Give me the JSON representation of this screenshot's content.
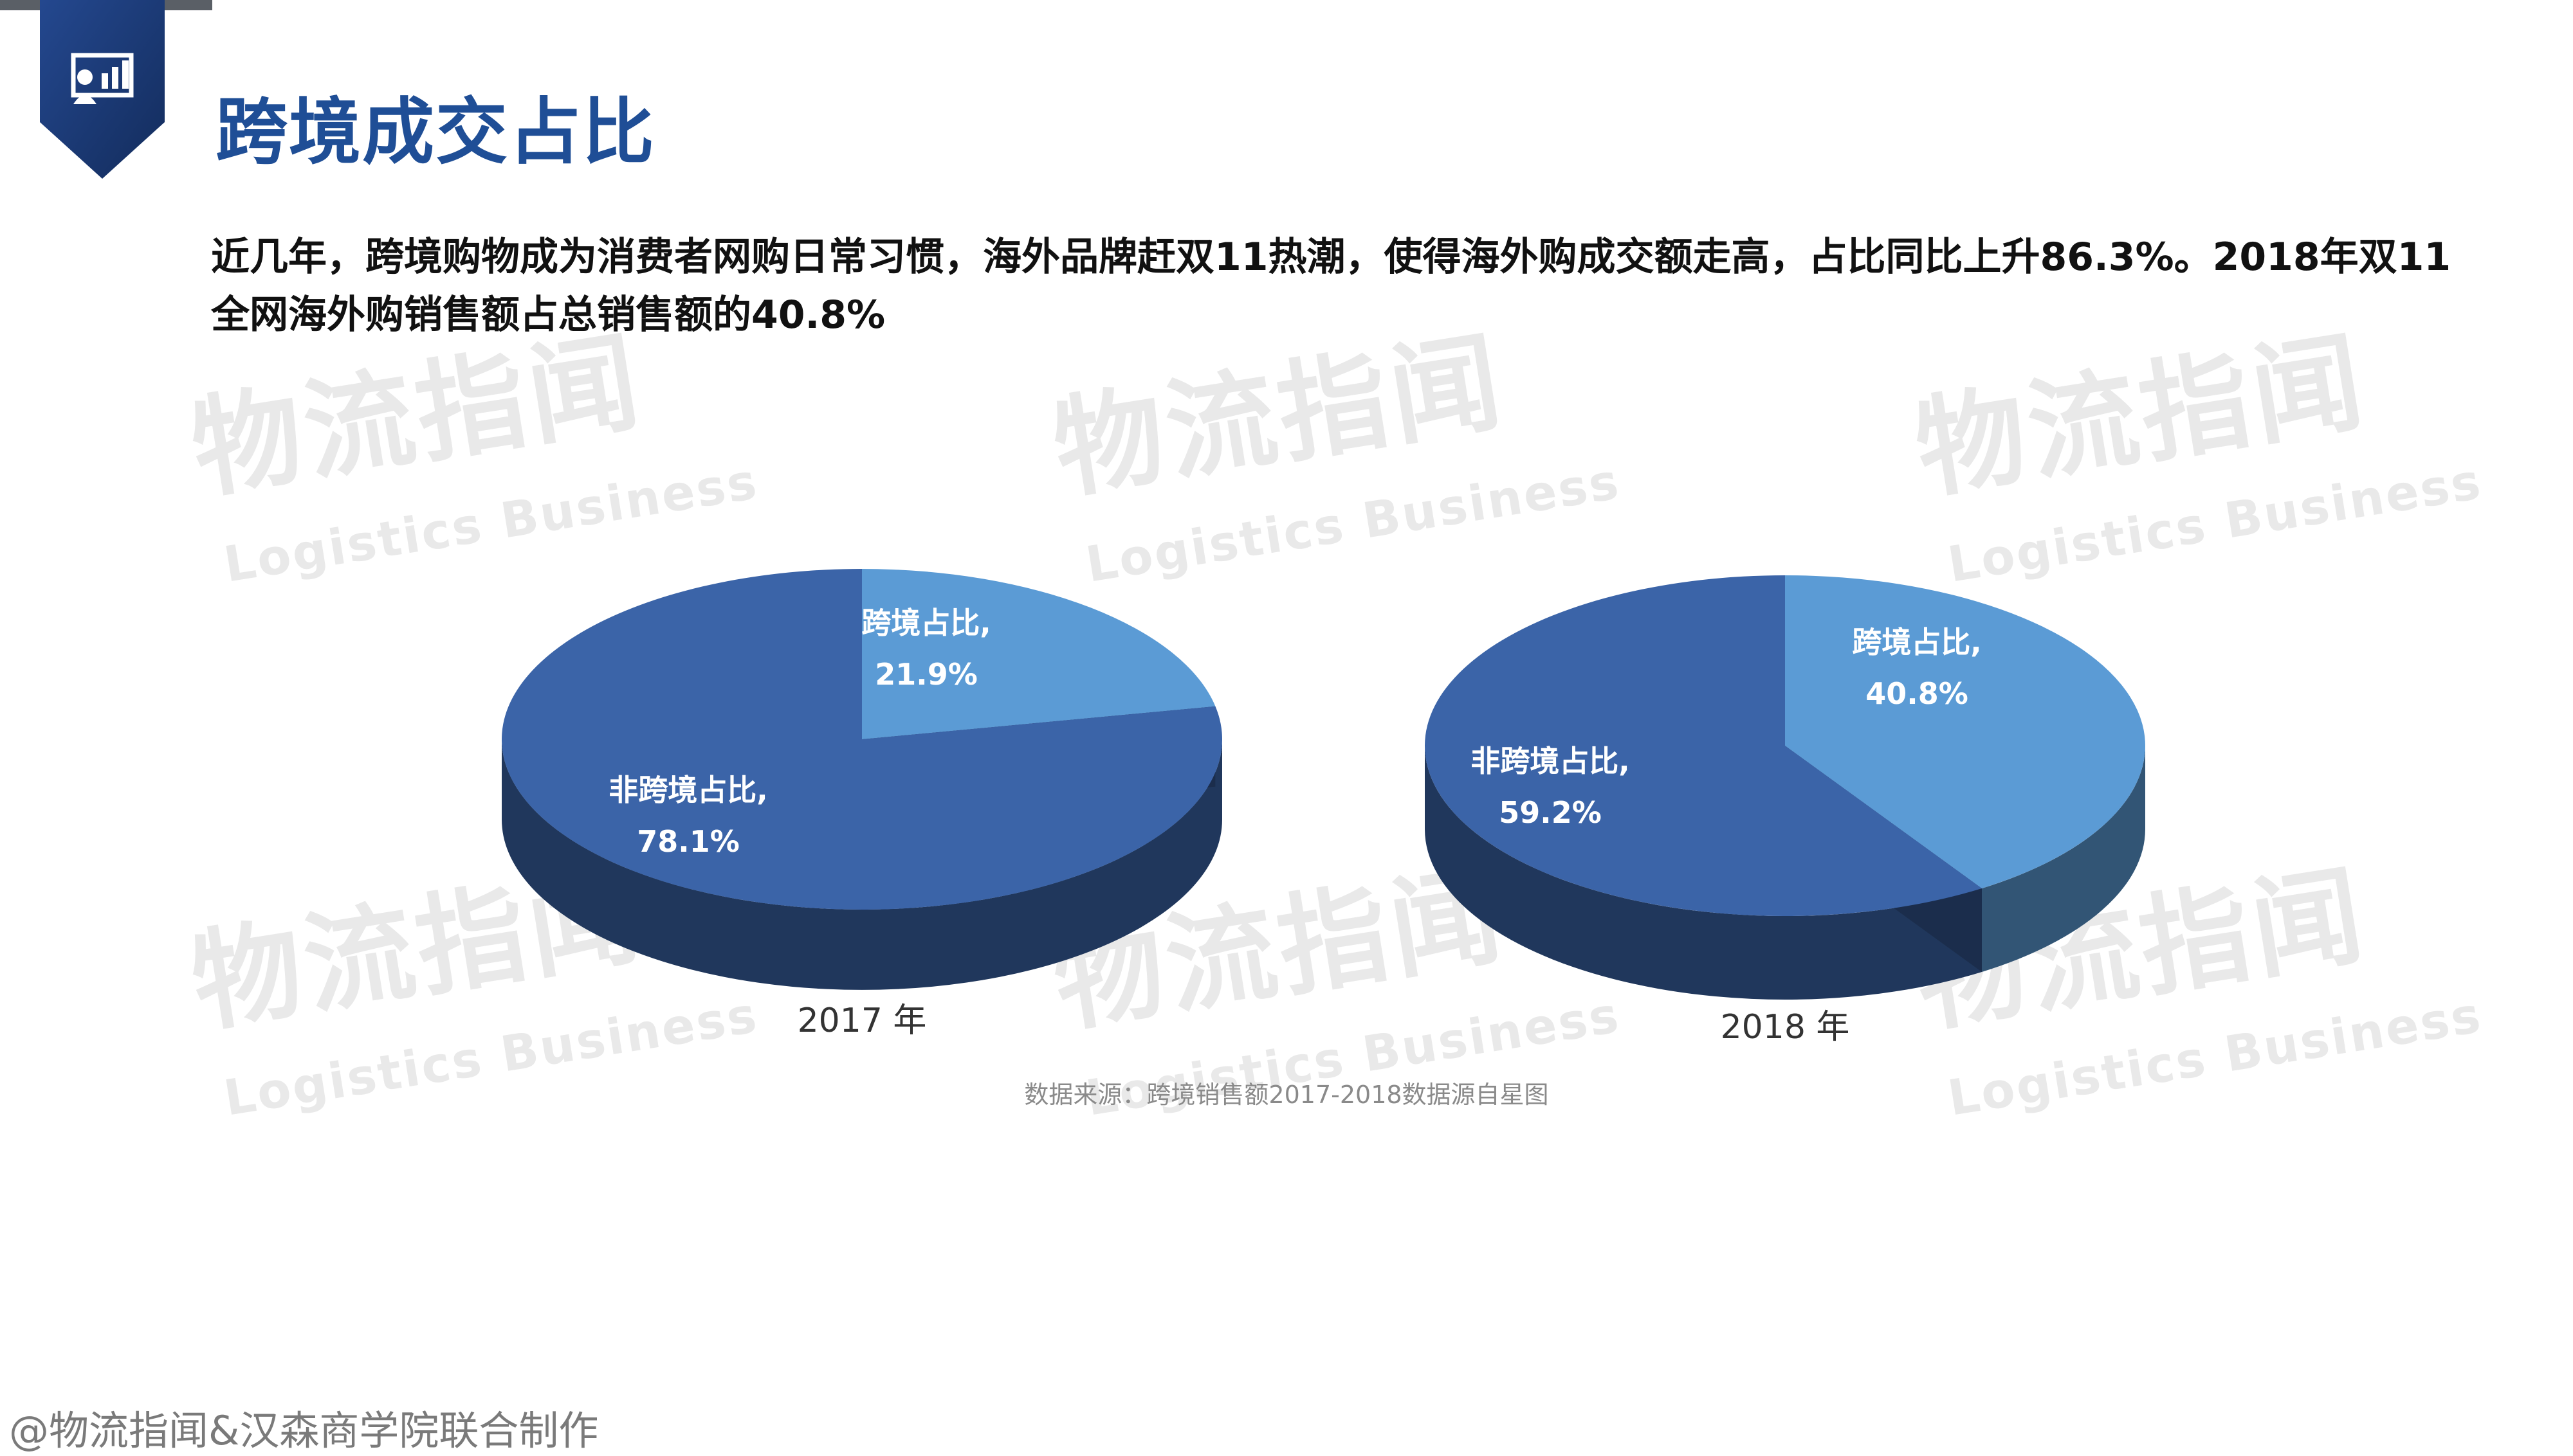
{
  "header": {
    "title": "跨境成交占比",
    "description": "近几年，跨境购物成为消费者网购日常习惯，海外品牌赶双11热潮，使得海外购成交额走高，占比同比上升86.3%。2018年双11全网海外购销售额占总销售额的40.8%"
  },
  "watermark": {
    "text_cn": "物流指闻",
    "text_en": "Logistics Business"
  },
  "chart_data": [
    {
      "type": "pie",
      "xlabel": "2017 年",
      "slices": [
        {
          "label": "跨境占比,",
          "value": 21.9,
          "display": "21.9%",
          "color": "#5b9bd5"
        },
        {
          "label": "非跨境占比,",
          "value": 78.1,
          "display": "78.1%",
          "color": "#3b64a8"
        }
      ]
    },
    {
      "type": "pie",
      "xlabel": "2018 年",
      "slices": [
        {
          "label": "跨境占比,",
          "value": 40.8,
          "display": "40.8%",
          "color": "#5b9bd5"
        },
        {
          "label": "非跨境占比,",
          "value": 59.2,
          "display": "59.2%",
          "color": "#3b64a8"
        }
      ]
    }
  ],
  "source": "数据来源：跨境销售额2017-2018数据源自星图",
  "footer": "@物流指闻&汉森商学院联合制作",
  "colors": {
    "title": "#1f4e96",
    "badge": "#1d3f7e",
    "accent_slice": "#5b9bd5",
    "main_slice": "#3b64a8"
  }
}
